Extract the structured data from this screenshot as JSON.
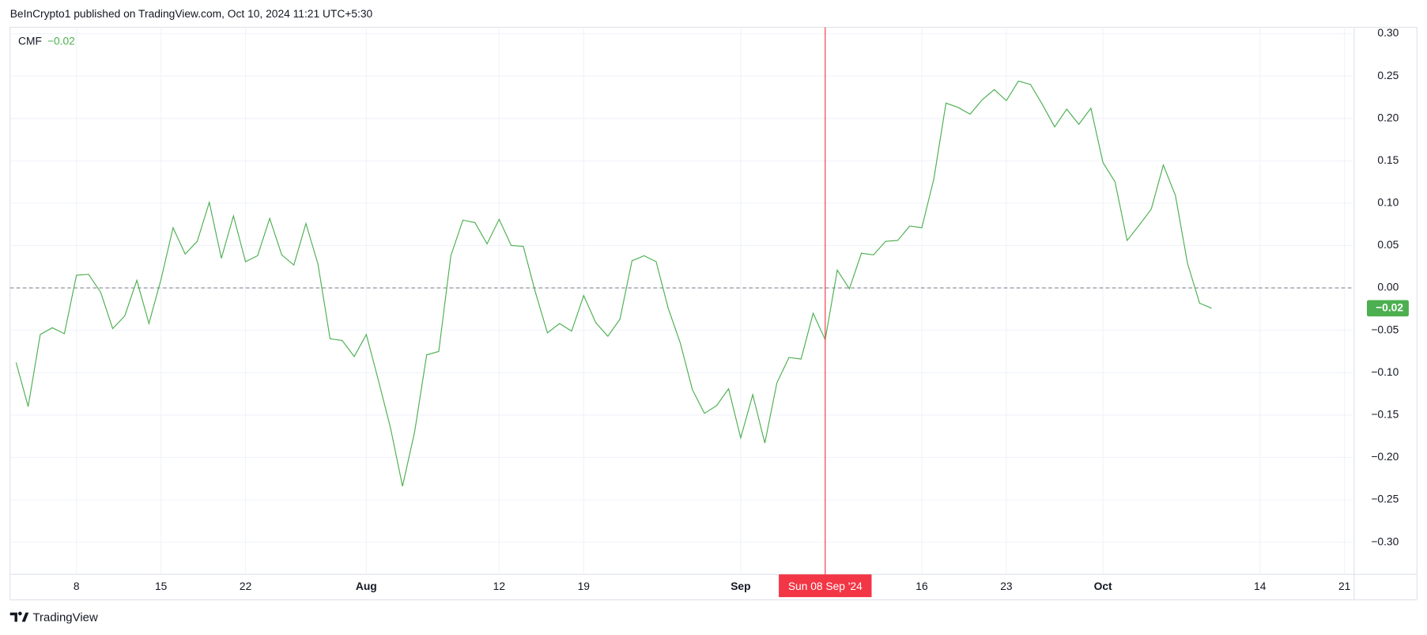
{
  "header": "BeInCrypto1 published on TradingView.com, Oct 10, 2024 11:21 UTC+5:30",
  "footer_brand": "TradingView",
  "chart_data": {
    "type": "line",
    "x": [
      3,
      4,
      5,
      6,
      7,
      8,
      9,
      10,
      11,
      12,
      13,
      14,
      15,
      16,
      17,
      18,
      19,
      20,
      21,
      22,
      23,
      24,
      25,
      26,
      27,
      28,
      29,
      30,
      31,
      32,
      33,
      34,
      35,
      36,
      37,
      38,
      39,
      40,
      41,
      42,
      43,
      44,
      45,
      46,
      47,
      48,
      49,
      50,
      51,
      52,
      53,
      54,
      55,
      56,
      57,
      58,
      59,
      60,
      61,
      62,
      63,
      64,
      65,
      66,
      67,
      68,
      69,
      70,
      71,
      72,
      73,
      74,
      75,
      76,
      77,
      78,
      79,
      80,
      81,
      82,
      83,
      84,
      85,
      86,
      87,
      88,
      89,
      90,
      91,
      92,
      93,
      94,
      95,
      96,
      97,
      98,
      99,
      100,
      101,
      102
    ],
    "series": [
      {
        "name": "CMF",
        "color": "#4caf50",
        "values": [
          -0.088,
          -0.14,
          -0.055,
          -0.047,
          -0.054,
          0.015,
          0.016,
          -0.005,
          -0.048,
          -0.033,
          0.009,
          -0.042,
          0.01,
          0.071,
          0.04,
          0.055,
          0.101,
          0.035,
          0.085,
          0.031,
          0.038,
          0.082,
          0.039,
          0.027,
          0.076,
          0.028,
          -0.06,
          -0.062,
          -0.081,
          -0.055,
          -0.109,
          -0.165,
          -0.234,
          -0.17,
          -0.079,
          -0.075,
          0.038,
          0.08,
          0.077,
          0.052,
          0.081,
          0.05,
          0.049,
          -0.005,
          -0.053,
          -0.042,
          -0.051,
          -0.009,
          -0.041,
          -0.057,
          -0.037,
          0.032,
          0.038,
          0.031,
          -0.024,
          -0.065,
          -0.12,
          -0.148,
          -0.139,
          -0.119,
          -0.177,
          -0.126,
          -0.183,
          -0.112,
          -0.082,
          -0.084,
          -0.03,
          -0.061,
          0.021,
          -0.001,
          0.041,
          0.039,
          0.055,
          0.056,
          0.073,
          0.071,
          0.129,
          0.218,
          0.213,
          0.205,
          0.222,
          0.234,
          0.221,
          0.244,
          0.24,
          0.216,
          0.19,
          0.211,
          0.193,
          0.212,
          0.148,
          0.125,
          0.056,
          0.074,
          0.093,
          0.145,
          0.109,
          0.029,
          -0.018,
          -0.024
        ],
        "last_value_label": "−0.02"
      }
    ],
    "xlim": [
      2.5,
      113.8
    ],
    "xticks": [
      8,
      15,
      22,
      {
        "value": 32,
        "label": "Aug"
      },
      {
        "value": 43,
        "label": "12"
      },
      {
        "value": 50,
        "label": "19"
      },
      {
        "value": 63,
        "label": "Sep"
      },
      {
        "value": 78,
        "label": "16"
      },
      {
        "value": 85,
        "label": "23"
      },
      {
        "value": 93,
        "label": "Oct"
      },
      {
        "value": 106,
        "label": "14"
      },
      {
        "value": 113,
        "label": "21"
      }
    ],
    "ylim": [
      -0.338,
      0.3075
    ],
    "yticks": [
      {
        "value": -0.3,
        "label": "−0.30"
      },
      {
        "value": -0.25,
        "label": "−0.25"
      },
      {
        "value": -0.2,
        "label": "−0.20"
      },
      {
        "value": -0.15,
        "label": "−0.15"
      },
      {
        "value": -0.1,
        "label": "−0.10"
      },
      {
        "value": -0.05,
        "label": "−0.05"
      },
      {
        "value": 0,
        "label": "0.00"
      },
      {
        "value": 0.05,
        "label": "0.05"
      },
      {
        "value": 0.1,
        "label": "0.10"
      },
      {
        "value": 0.15,
        "label": "0.15"
      },
      {
        "value": 0.2,
        "label": "0.20"
      },
      {
        "value": 0.25,
        "label": "0.25"
      },
      {
        "value": 0.3,
        "label": "0.30"
      }
    ],
    "baseline": 0,
    "grid": true,
    "crosshair": {
      "x": 70,
      "label": "Sun 08 Sep '24",
      "color": "#f23645"
    }
  }
}
